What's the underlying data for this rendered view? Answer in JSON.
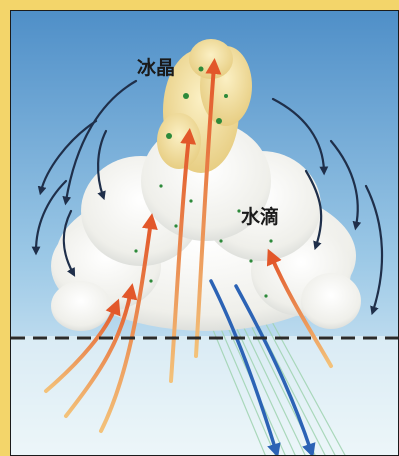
{
  "labels": {
    "ice_crystals": "冰晶",
    "water_droplets": "水滴"
  },
  "colors": {
    "sky_top": "#4f8fc8",
    "sky_bottom": "#e6f3f8",
    "cloud": "#f4f4f0",
    "cloud_top": "#efd98f",
    "updraft": "#e2622c",
    "downdraft_outer": "#1f2f4a",
    "rain_arrow": "#2c63b5",
    "dashed_line": "#2a2a2a",
    "ice_dot": "#2d8a3a"
  }
}
